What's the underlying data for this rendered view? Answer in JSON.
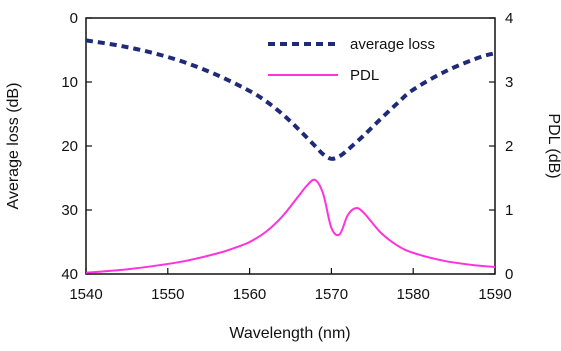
{
  "chart_data": {
    "type": "line",
    "xlabel": "Wavelength (nm)",
    "ylabel_left": "Average loss (dB)",
    "ylabel_right": "PDL (dB)",
    "xlim": [
      1540,
      1590
    ],
    "ylim_left": [
      40,
      0
    ],
    "ylim_right": [
      0,
      4
    ],
    "left_axis_inverted": true,
    "x_ticks": [
      "1540",
      "1550",
      "1560",
      "1570",
      "1580",
      "1590"
    ],
    "y_left_ticks": [
      "0",
      "10",
      "20",
      "30",
      "40"
    ],
    "y_right_ticks": [
      "0",
      "1",
      "2",
      "3",
      "4"
    ],
    "grid": false,
    "legend": "top-right",
    "series": [
      {
        "name": "average loss",
        "axis": "left",
        "style": "dashed",
        "color": "#1f2a78",
        "x": [
          1540,
          1544,
          1548,
          1552,
          1556,
          1560,
          1562,
          1564,
          1566,
          1568,
          1569,
          1570,
          1571,
          1572,
          1574,
          1576,
          1578,
          1580,
          1584,
          1588,
          1590
        ],
        "y": [
          3.5,
          4.3,
          5.4,
          6.9,
          8.9,
          11.4,
          13.0,
          15.0,
          17.4,
          20.0,
          21.3,
          22.0,
          21.6,
          20.6,
          18.3,
          15.8,
          13.4,
          11.2,
          8.3,
          6.2,
          5.5
        ]
      },
      {
        "name": "PDL",
        "axis": "right",
        "style": "solid",
        "color": "#ff33dd",
        "x": [
          1540,
          1544,
          1548,
          1552,
          1556,
          1558,
          1560,
          1562,
          1564,
          1566,
          1567,
          1568,
          1569,
          1570,
          1571,
          1572,
          1573,
          1574,
          1576,
          1578,
          1580,
          1584,
          1588,
          1590
        ],
        "y": [
          0.02,
          0.06,
          0.12,
          0.2,
          0.32,
          0.4,
          0.5,
          0.66,
          0.9,
          1.22,
          1.38,
          1.47,
          1.25,
          0.72,
          0.62,
          0.92,
          1.03,
          0.95,
          0.65,
          0.45,
          0.33,
          0.2,
          0.13,
          0.11
        ]
      }
    ]
  }
}
